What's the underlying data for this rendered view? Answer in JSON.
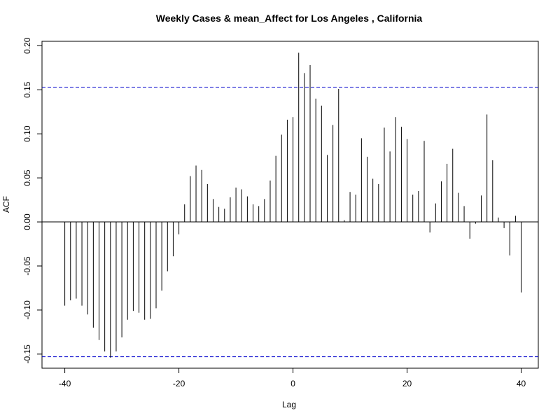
{
  "chart_data": {
    "type": "bar",
    "title": "Weekly Cases & mean_Affect for Los Angeles , California",
    "xlabel": "Lag",
    "ylabel": "ACF",
    "xlim": [
      -44,
      43
    ],
    "ylim": [
      -0.166,
      0.205
    ],
    "x_ticks": [
      -40,
      -20,
      0,
      20,
      40
    ],
    "x_tick_labels": [
      "-40",
      "-20",
      "0",
      "20",
      "40"
    ],
    "y_ticks": [
      -0.15,
      -0.1,
      -0.05,
      0.0,
      0.05,
      0.1,
      0.15,
      0.2
    ],
    "y_tick_labels": [
      "-0.15",
      "-0.10",
      "-0.05",
      "0.00",
      "0.05",
      "0.10",
      "0.15",
      "0.20"
    ],
    "confidence_bound": 0.153,
    "confidence_color": "#0000cc",
    "line_color": "#000000",
    "grid": false,
    "lags": [
      -40,
      -39,
      -38,
      -37,
      -36,
      -35,
      -34,
      -33,
      -32,
      -31,
      -30,
      -29,
      -28,
      -27,
      -26,
      -25,
      -24,
      -23,
      -22,
      -21,
      -20,
      -19,
      -18,
      -17,
      -16,
      -15,
      -14,
      -13,
      -12,
      -11,
      -10,
      -9,
      -8,
      -7,
      -6,
      -5,
      -4,
      -3,
      -2,
      -1,
      0,
      1,
      2,
      3,
      4,
      5,
      6,
      7,
      8,
      9,
      10,
      11,
      12,
      13,
      14,
      15,
      16,
      17,
      18,
      19,
      20,
      21,
      22,
      23,
      24,
      25,
      26,
      27,
      28,
      29,
      30,
      31,
      32,
      33,
      34,
      35,
      36,
      37,
      38,
      39,
      40
    ],
    "acf": [
      -0.095,
      -0.089,
      -0.087,
      -0.095,
      -0.105,
      -0.12,
      -0.134,
      -0.147,
      -0.154,
      -0.147,
      -0.131,
      -0.111,
      -0.101,
      -0.103,
      -0.111,
      -0.11,
      -0.098,
      -0.078,
      -0.056,
      -0.039,
      -0.014,
      0.02,
      0.052,
      0.064,
      0.059,
      0.043,
      0.026,
      0.017,
      0.015,
      0.028,
      0.039,
      0.037,
      0.029,
      0.02,
      0.018,
      0.026,
      0.047,
      0.075,
      0.099,
      0.116,
      0.119,
      0.192,
      0.169,
      0.178,
      0.14,
      0.132,
      0.076,
      0.11,
      0.151,
      0.002,
      0.034,
      0.031,
      0.095,
      0.074,
      0.049,
      0.043,
      0.107,
      0.08,
      0.119,
      0.108,
      0.094,
      0.031,
      0.035,
      0.092,
      -0.012,
      0.021,
      0.046,
      0.066,
      0.083,
      0.033,
      0.018,
      -0.019,
      -0.002,
      0.03,
      0.122,
      0.07,
      0.005,
      -0.007,
      -0.038,
      0.007,
      -0.08
    ]
  }
}
